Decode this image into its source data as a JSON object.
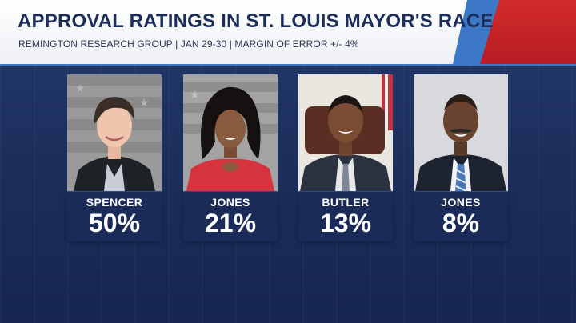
{
  "header": {
    "title": "APPROVAL RATINGS IN ST. LOUIS MAYOR'S RACE",
    "subtitle": "REMINGTON RESEARCH GROUP | JAN 29-30 | MARGIN OF ERROR +/- 4%"
  },
  "colors": {
    "background": "#1c2f5e",
    "banner_red": "#c8232a",
    "banner_blue": "#3d78c8",
    "label_box": "#1a2b58"
  },
  "chart_data": {
    "type": "table",
    "title": "APPROVAL RATINGS IN ST. LOUIS MAYOR'S RACE",
    "subtitle": "REMINGTON RESEARCH GROUP | JAN 29-30 | MARGIN OF ERROR +/- 4%",
    "categories": [
      "SPENCER",
      "JONES",
      "BUTLER",
      "JONES"
    ],
    "values": [
      50,
      21,
      13,
      8
    ],
    "labels": [
      "50%",
      "21%",
      "13%",
      "8%"
    ]
  },
  "candidates": [
    {
      "name": "SPENCER",
      "pct": "50%"
    },
    {
      "name": "JONES",
      "pct": "21%"
    },
    {
      "name": "BUTLER",
      "pct": "13%"
    },
    {
      "name": "JONES",
      "pct": "8%"
    }
  ]
}
